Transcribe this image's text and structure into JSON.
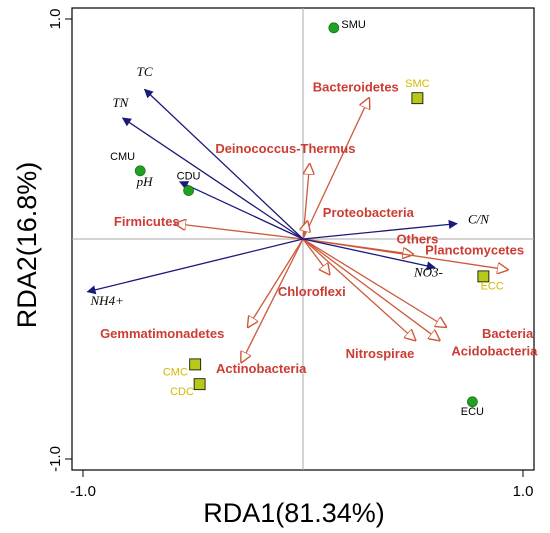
{
  "chart_data": {
    "type": "scatter",
    "subtype": "rda-biplot",
    "xlabel": "RDA1(81.34%)",
    "ylabel": "RDA2(16.8%)",
    "xlim": [
      -1.05,
      1.05
    ],
    "ylim": [
      -1.05,
      1.05
    ],
    "x_ticks": [
      {
        "value": -1.0,
        "label": "-1.0"
      },
      {
        "value": 1.0,
        "label": "1.0"
      }
    ],
    "y_ticks": [
      {
        "value": 1.0,
        "label": "1.0"
      },
      {
        "value": -1.0,
        "label": "-1.0"
      }
    ],
    "zero_lines": true,
    "colors": {
      "env_arrow": "#1a1a7a",
      "species_arrow": "#cc5a3a",
      "species_label": "#cc3c33",
      "site_circle": "#22a022",
      "site_square": "#b8c81a",
      "site_square_label": "#d4b800",
      "site_circle_label": "#000000",
      "zero_line": "#aaaaaa"
    },
    "env_vectors": [
      {
        "label": "TC",
        "x": -0.72,
        "y": 0.68,
        "label_x": -0.72,
        "label_y": 0.74,
        "anchor": "middle"
      },
      {
        "label": "TN",
        "x": -0.82,
        "y": 0.55,
        "label_x": -0.83,
        "label_y": 0.6,
        "anchor": "middle"
      },
      {
        "label": "pH",
        "x": -0.56,
        "y": 0.26,
        "label_x": -0.72,
        "label_y": 0.24,
        "anchor": "middle"
      },
      {
        "label": "C/N",
        "x": 0.7,
        "y": 0.07,
        "label_x": 0.75,
        "label_y": 0.07,
        "anchor": "start"
      },
      {
        "label": "NO3-",
        "x": 0.6,
        "y": -0.13,
        "label_x": 0.57,
        "label_y": -0.17,
        "anchor": "middle"
      },
      {
        "label": "NH4+",
        "x": -0.98,
        "y": -0.24,
        "label_x": -0.89,
        "label_y": -0.3,
        "anchor": "middle"
      }
    ],
    "species_vectors": [
      {
        "label": "Bacteroidetes",
        "x": 0.3,
        "y": 0.64,
        "label_x": 0.24,
        "label_y": 0.67,
        "anchor": "middle"
      },
      {
        "label": "Deinococcus-Thermus",
        "x": 0.03,
        "y": 0.34,
        "label_x": -0.08,
        "label_y": 0.39,
        "anchor": "middle"
      },
      {
        "label": "Proteobacteria",
        "x": 0.02,
        "y": 0.08,
        "label_x": 0.09,
        "label_y": 0.1,
        "anchor": "start"
      },
      {
        "label": "Firmicutes",
        "x": -0.58,
        "y": 0.07,
        "label_x": -0.71,
        "label_y": 0.06,
        "anchor": "middle"
      },
      {
        "label": "Others",
        "x": 0.5,
        "y": -0.07,
        "label_x": 0.52,
        "label_y": -0.02,
        "anchor": "middle"
      },
      {
        "label": "Planctomycetes",
        "x": 0.93,
        "y": -0.14,
        "label_x": 0.78,
        "label_y": -0.07,
        "anchor": "middle"
      },
      {
        "label": "Chloroflexi",
        "x": 0.12,
        "y": -0.16,
        "label_x": 0.04,
        "label_y": -0.26,
        "anchor": "middle"
      },
      {
        "label": "Gemmatimonadetes",
        "x": -0.25,
        "y": -0.4,
        "label_x": -0.64,
        "label_y": -0.45,
        "anchor": "middle"
      },
      {
        "label": "Actinobacteria",
        "x": -0.28,
        "y": -0.56,
        "label_x": -0.19,
        "label_y": -0.61,
        "anchor": "middle"
      },
      {
        "label": "Nitrospirae",
        "x": 0.51,
        "y": -0.46,
        "label_x": 0.35,
        "label_y": -0.54,
        "anchor": "middle"
      },
      {
        "label": "Bacteria",
        "x": 0.65,
        "y": -0.4,
        "label_x": 0.93,
        "label_y": -0.45,
        "anchor": "middle"
      },
      {
        "label": "Acidobacteria",
        "x": 0.62,
        "y": -0.46,
        "label_x": 0.87,
        "label_y": -0.53,
        "anchor": "middle"
      }
    ],
    "sites": [
      {
        "label": "SMU",
        "x": 0.14,
        "y": 0.96,
        "shape": "circle",
        "label_x": 0.23,
        "label_y": 0.96,
        "anchor": "middle"
      },
      {
        "label": "SMC",
        "x": 0.52,
        "y": 0.64,
        "shape": "square",
        "label_x": 0.52,
        "label_y": 0.69,
        "anchor": "middle"
      },
      {
        "label": "CMU",
        "x": -0.74,
        "y": 0.31,
        "shape": "circle",
        "label_x": -0.82,
        "label_y": 0.36,
        "anchor": "middle"
      },
      {
        "label": "CDU",
        "x": -0.52,
        "y": 0.22,
        "shape": "circle",
        "label_x": -0.52,
        "label_y": 0.27,
        "anchor": "middle"
      },
      {
        "label": "ECC",
        "x": 0.82,
        "y": -0.17,
        "shape": "square",
        "label_x": 0.86,
        "label_y": -0.23,
        "anchor": "middle"
      },
      {
        "label": "CMC",
        "x": -0.49,
        "y": -0.57,
        "shape": "square",
        "label_x": -0.58,
        "label_y": -0.62,
        "anchor": "middle"
      },
      {
        "label": "CDC",
        "x": -0.47,
        "y": -0.66,
        "shape": "square",
        "label_x": -0.55,
        "label_y": -0.71,
        "anchor": "middle"
      },
      {
        "label": "ECU",
        "x": 0.77,
        "y": -0.74,
        "shape": "circle",
        "label_x": 0.77,
        "label_y": -0.8,
        "anchor": "middle"
      }
    ]
  }
}
